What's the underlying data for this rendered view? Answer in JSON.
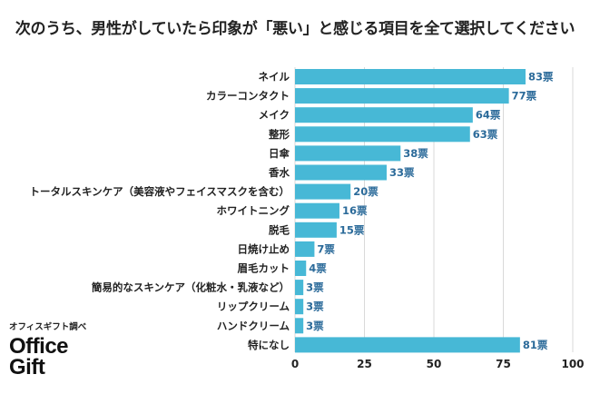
{
  "chart_data": {
    "type": "bar",
    "orientation": "horizontal",
    "title": "次のうち、男性がしていたら印象が「悪い」と感じる項目を全て選択してください",
    "categories": [
      "ネイル",
      "カラーコンタクト",
      "メイク",
      "整形",
      "日傘",
      "香水",
      "トータルスキンケア（美容液やフェイスマスクを含む）",
      "ホワイトニング",
      "脱毛",
      "日焼け止め",
      "眉毛カット",
      "簡易的なスキンケア（化粧水・乳液など）",
      "リップクリーム",
      "ハンドクリーム",
      "特になし"
    ],
    "values": [
      83,
      77,
      64,
      63,
      38,
      33,
      20,
      16,
      15,
      7,
      4,
      3,
      3,
      3,
      81
    ],
    "value_labels": [
      "83票",
      "77票",
      "64票",
      "63票",
      "38票",
      "33票",
      "20票",
      "16票",
      "15票",
      "7票",
      "4票",
      "3票",
      "3票",
      "3票",
      "81票"
    ],
    "xlim": [
      0,
      100
    ],
    "xticks": [
      0,
      25,
      50,
      75,
      100
    ],
    "xlabel": "",
    "ylabel": "",
    "grid": true,
    "legend": "none",
    "bar_color": "#47b8d6",
    "value_label_color": "#2c6b9a"
  },
  "brand": {
    "subtitle": "オフィスギフト調べ",
    "logo_line1": "Office",
    "logo_line2": "Gift"
  }
}
